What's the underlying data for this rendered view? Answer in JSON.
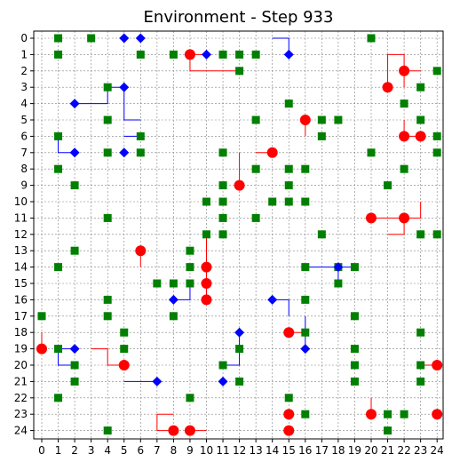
{
  "chart_data": {
    "type": "scatter",
    "title": "Environment - Step 933",
    "xlabel": "",
    "ylabel": "",
    "xlim": [
      0,
      24
    ],
    "ylim": [
      0,
      24
    ],
    "y_inverted": true,
    "grid": true,
    "x_ticks": [
      "0",
      "1",
      "2",
      "3",
      "4",
      "5",
      "6",
      "7",
      "8",
      "9",
      "10",
      "11",
      "12",
      "13",
      "14",
      "15",
      "16",
      "17",
      "18",
      "19",
      "20",
      "21",
      "22",
      "23",
      "24"
    ],
    "y_ticks": [
      "0",
      "1",
      "2",
      "3",
      "4",
      "5",
      "6",
      "7",
      "8",
      "9",
      "10",
      "11",
      "12",
      "13",
      "14",
      "15",
      "16",
      "17",
      "18",
      "19",
      "20",
      "21",
      "22",
      "23",
      "24"
    ],
    "colors": {
      "green_square": "#008000",
      "red_circle": "#ff0000",
      "blue_diamond": "#0000ff",
      "red_path": "#ff0000",
      "blue_path": "#0000ff",
      "grid": "#808080"
    },
    "series": [
      {
        "marker": "square",
        "color": "#008000",
        "points": [
          [
            1,
            0
          ],
          [
            3,
            0
          ],
          [
            20,
            0
          ],
          [
            1,
            1
          ],
          [
            6,
            1
          ],
          [
            8,
            1
          ],
          [
            11,
            1
          ],
          [
            12,
            1
          ],
          [
            13,
            1
          ],
          [
            12,
            2
          ],
          [
            24,
            2
          ],
          [
            4,
            3
          ],
          [
            23,
            3
          ],
          [
            15,
            4
          ],
          [
            22,
            4
          ],
          [
            4,
            5
          ],
          [
            13,
            5
          ],
          [
            17,
            5
          ],
          [
            18,
            5
          ],
          [
            23,
            5
          ],
          [
            1,
            6
          ],
          [
            6,
            6
          ],
          [
            17,
            6
          ],
          [
            24,
            6
          ],
          [
            4,
            7
          ],
          [
            6,
            7
          ],
          [
            11,
            7
          ],
          [
            20,
            7
          ],
          [
            24,
            7
          ],
          [
            1,
            8
          ],
          [
            13,
            8
          ],
          [
            15,
            8
          ],
          [
            16,
            8
          ],
          [
            22,
            8
          ],
          [
            2,
            9
          ],
          [
            11,
            9
          ],
          [
            15,
            9
          ],
          [
            21,
            9
          ],
          [
            10,
            10
          ],
          [
            11,
            10
          ],
          [
            14,
            10
          ],
          [
            15,
            10
          ],
          [
            16,
            10
          ],
          [
            4,
            11
          ],
          [
            11,
            11
          ],
          [
            13,
            11
          ],
          [
            10,
            12
          ],
          [
            11,
            12
          ],
          [
            17,
            12
          ],
          [
            23,
            12
          ],
          [
            24,
            12
          ],
          [
            2,
            13
          ],
          [
            9,
            13
          ],
          [
            1,
            14
          ],
          [
            9,
            14
          ],
          [
            16,
            14
          ],
          [
            18,
            14
          ],
          [
            19,
            14
          ],
          [
            7,
            15
          ],
          [
            8,
            15
          ],
          [
            9,
            15
          ],
          [
            18,
            15
          ],
          [
            4,
            16
          ],
          [
            16,
            16
          ],
          [
            0,
            17
          ],
          [
            4,
            17
          ],
          [
            8,
            17
          ],
          [
            19,
            17
          ],
          [
            5,
            18
          ],
          [
            16,
            18
          ],
          [
            23,
            18
          ],
          [
            1,
            19
          ],
          [
            5,
            19
          ],
          [
            12,
            19
          ],
          [
            19,
            19
          ],
          [
            2,
            20
          ],
          [
            11,
            20
          ],
          [
            19,
            20
          ],
          [
            23,
            20
          ],
          [
            2,
            21
          ],
          [
            12,
            21
          ],
          [
            19,
            21
          ],
          [
            23,
            21
          ],
          [
            1,
            22
          ],
          [
            9,
            22
          ],
          [
            15,
            22
          ],
          [
            16,
            23
          ],
          [
            21,
            23
          ],
          [
            22,
            23
          ],
          [
            4,
            24
          ],
          [
            21,
            24
          ]
        ]
      },
      {
        "marker": "circle",
        "color": "#ff0000",
        "points": [
          [
            9,
            1
          ],
          [
            22,
            2
          ],
          [
            21,
            3
          ],
          [
            16,
            5
          ],
          [
            22,
            6
          ],
          [
            23,
            6
          ],
          [
            14,
            7
          ],
          [
            12,
            9
          ],
          [
            20,
            11
          ],
          [
            22,
            11
          ],
          [
            6,
            13
          ],
          [
            10,
            14
          ],
          [
            10,
            15
          ],
          [
            10,
            16
          ],
          [
            15,
            18
          ],
          [
            0,
            19
          ],
          [
            5,
            20
          ],
          [
            24,
            20
          ],
          [
            15,
            23
          ],
          [
            20,
            23
          ],
          [
            24,
            23
          ],
          [
            8,
            24
          ],
          [
            9,
            24
          ],
          [
            15,
            24
          ]
        ]
      },
      {
        "marker": "diamond",
        "color": "#0000ff",
        "points": [
          [
            5,
            0
          ],
          [
            6,
            0
          ],
          [
            10,
            1
          ],
          [
            15,
            1
          ],
          [
            5,
            3
          ],
          [
            2,
            4
          ],
          [
            2,
            7
          ],
          [
            5,
            7
          ],
          [
            18,
            14
          ],
          [
            8,
            16
          ],
          [
            14,
            16
          ],
          [
            12,
            18
          ],
          [
            16,
            19
          ],
          [
            2,
            19
          ],
          [
            7,
            21
          ],
          [
            11,
            21
          ]
        ]
      }
    ],
    "paths": [
      {
        "color": "#ff0000",
        "points": [
          [
            9,
            1
          ],
          [
            10,
            1
          ]
        ]
      },
      {
        "color": "#ff0000",
        "points": [
          [
            9,
            1
          ],
          [
            9,
            2
          ],
          [
            12,
            2
          ]
        ]
      },
      {
        "color": "#ff0000",
        "points": [
          [
            22,
            2
          ],
          [
            22,
            1
          ],
          [
            21,
            1
          ],
          [
            21,
            3
          ]
        ]
      },
      {
        "color": "#ff0000",
        "points": [
          [
            22,
            2
          ],
          [
            23,
            2
          ]
        ]
      },
      {
        "color": "#ff0000",
        "points": [
          [
            22,
            2
          ],
          [
            22,
            3
          ]
        ]
      },
      {
        "color": "#ff0000",
        "points": [
          [
            16,
            5
          ],
          [
            16,
            6
          ]
        ]
      },
      {
        "color": "#ff0000",
        "points": [
          [
            22,
            6
          ],
          [
            23,
            6
          ]
        ]
      },
      {
        "color": "#ff0000",
        "points": [
          [
            22,
            6
          ],
          [
            22,
            5
          ]
        ]
      },
      {
        "color": "#ff0000",
        "points": [
          [
            14,
            7
          ],
          [
            13,
            7
          ]
        ]
      },
      {
        "color": "#ff0000",
        "points": [
          [
            12,
            9
          ],
          [
            12,
            7
          ]
        ]
      },
      {
        "color": "#ff0000",
        "points": [
          [
            20,
            11
          ],
          [
            22,
            11
          ],
          [
            23,
            11
          ],
          [
            23,
            10
          ]
        ]
      },
      {
        "color": "#ff0000",
        "points": [
          [
            22,
            11
          ],
          [
            22,
            12
          ],
          [
            21,
            12
          ]
        ]
      },
      {
        "color": "#ff0000",
        "points": [
          [
            6,
            13
          ],
          [
            6,
            14
          ]
        ]
      },
      {
        "color": "#ff0000",
        "points": [
          [
            10,
            14
          ],
          [
            10,
            16
          ]
        ]
      },
      {
        "color": "#ff0000",
        "points": [
          [
            10,
            14
          ],
          [
            10,
            12
          ]
        ]
      },
      {
        "color": "#ff0000",
        "points": [
          [
            15,
            18
          ],
          [
            16,
            18
          ]
        ]
      },
      {
        "color": "#ff0000",
        "points": [
          [
            0,
            19
          ],
          [
            0,
            18
          ]
        ]
      },
      {
        "color": "#ff0000",
        "points": [
          [
            5,
            20
          ],
          [
            4,
            20
          ],
          [
            4,
            19
          ],
          [
            3,
            19
          ]
        ]
      },
      {
        "color": "#ff0000",
        "points": [
          [
            24,
            20
          ],
          [
            23,
            20
          ]
        ]
      },
      {
        "color": "#ff0000",
        "points": [
          [
            20,
            23
          ],
          [
            20,
            22
          ]
        ]
      },
      {
        "color": "#ff0000",
        "points": [
          [
            8,
            24
          ],
          [
            7,
            24
          ],
          [
            7,
            23
          ],
          [
            8,
            23
          ]
        ]
      },
      {
        "color": "#ff0000",
        "points": [
          [
            9,
            24
          ],
          [
            10,
            24
          ]
        ]
      },
      {
        "color": "#0000ff",
        "points": [
          [
            14,
            0
          ],
          [
            15,
            0
          ],
          [
            15,
            1
          ]
        ]
      },
      {
        "color": "#0000ff",
        "points": [
          [
            2,
            4
          ],
          [
            4,
            4
          ],
          [
            4,
            3
          ]
        ]
      },
      {
        "color": "#0000ff",
        "points": [
          [
            5,
            3
          ],
          [
            5,
            5
          ],
          [
            6,
            5
          ]
        ]
      },
      {
        "color": "#0000ff",
        "points": [
          [
            5,
            3
          ],
          [
            4,
            3
          ]
        ]
      },
      {
        "color": "#0000ff",
        "points": [
          [
            5,
            6
          ],
          [
            6,
            6
          ]
        ]
      },
      {
        "color": "#0000ff",
        "points": [
          [
            2,
            7
          ],
          [
            1,
            7
          ],
          [
            1,
            6
          ]
        ]
      },
      {
        "color": "#0000ff",
        "points": [
          [
            16,
            14
          ],
          [
            18,
            14
          ],
          [
            19,
            14
          ]
        ]
      },
      {
        "color": "#0000ff",
        "points": [
          [
            18,
            14
          ],
          [
            18,
            15
          ]
        ]
      },
      {
        "color": "#0000ff",
        "points": [
          [
            8,
            16
          ],
          [
            9,
            16
          ],
          [
            9,
            15
          ]
        ]
      },
      {
        "color": "#0000ff",
        "points": [
          [
            14,
            16
          ],
          [
            15,
            16
          ],
          [
            15,
            17
          ]
        ]
      },
      {
        "color": "#0000ff",
        "points": [
          [
            12,
            18
          ],
          [
            12,
            20
          ],
          [
            11,
            20
          ]
        ]
      },
      {
        "color": "#0000ff",
        "points": [
          [
            16,
            19
          ],
          [
            16,
            17
          ]
        ]
      },
      {
        "color": "#0000ff",
        "points": [
          [
            2,
            19
          ],
          [
            1,
            19
          ],
          [
            1,
            20
          ],
          [
            2,
            20
          ]
        ]
      },
      {
        "color": "#0000ff",
        "points": [
          [
            7,
            21
          ],
          [
            5,
            21
          ]
        ]
      }
    ]
  }
}
